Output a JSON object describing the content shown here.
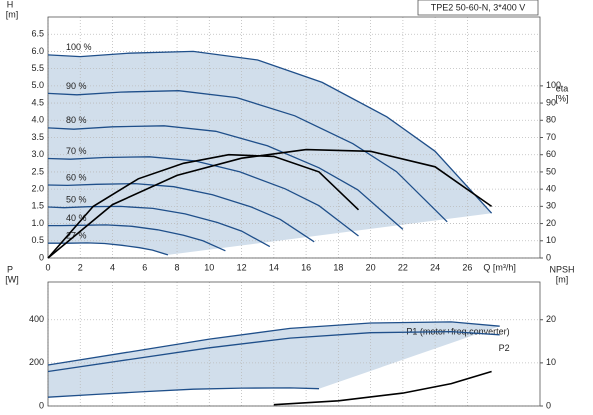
{
  "chart_data": [
    {
      "type": "line",
      "title": "TPE2 50-60-N, 3*400 V",
      "y_label": "H",
      "y_unit": "[m]",
      "y2_label": "eta",
      "y2_unit": "[%]",
      "x_label": "Q [m³/h]",
      "xlim": [
        0,
        30.5
      ],
      "xticks": [
        0,
        2,
        4,
        6,
        8,
        10,
        12,
        14,
        16,
        18,
        20,
        22,
        24,
        26
      ],
      "ylim": [
        0,
        7
      ],
      "yticks": [
        0,
        0.5,
        {
          "value": 1,
          "label": "1.0"
        },
        1.5,
        {
          "value": 2,
          "label": "2.0"
        },
        2.5,
        {
          "value": 3,
          "label": "3.0"
        },
        3.5,
        {
          "value": 4,
          "label": "4.0"
        },
        4.5,
        {
          "value": 5,
          "label": "5.0"
        },
        5.5,
        {
          "value": 6,
          "label": "6.0"
        },
        6.5
      ],
      "y2lim": [
        0,
        140
      ],
      "y2ticks": [
        0,
        10,
        20,
        30,
        40,
        50,
        60,
        70,
        80,
        90,
        100
      ],
      "grid": true,
      "shade_color": "#c9d8e8",
      "label_position": "start",
      "series": [
        {
          "name": "100 %",
          "color": "#1f4f8a",
          "x": [
            0,
            2,
            5,
            9,
            13,
            17,
            21,
            24,
            27.5
          ],
          "values": [
            5.9,
            5.85,
            5.95,
            6.0,
            5.75,
            5.1,
            4.1,
            3.1,
            1.3
          ]
        },
        {
          "name": "90 %",
          "color": "#1f4f8a",
          "x": [
            0,
            1.8,
            4.5,
            8.1,
            11.7,
            15.3,
            18.9,
            21.6,
            24.75
          ],
          "values": [
            4.78,
            4.74,
            4.82,
            4.86,
            4.66,
            4.13,
            3.32,
            2.51,
            1.05
          ]
        },
        {
          "name": "80 %",
          "color": "#1f4f8a",
          "x": [
            0,
            1.6,
            4,
            7.2,
            10.4,
            13.6,
            16.8,
            19.2,
            22
          ],
          "values": [
            3.78,
            3.74,
            3.81,
            3.84,
            3.68,
            3.26,
            2.62,
            1.98,
            0.83
          ]
        },
        {
          "name": "70 %",
          "color": "#1f4f8a",
          "x": [
            0,
            1.4,
            3.5,
            6.3,
            9.1,
            11.9,
            14.7,
            16.8,
            19.25
          ],
          "values": [
            2.89,
            2.87,
            2.92,
            2.94,
            2.82,
            2.5,
            2.01,
            1.52,
            0.64
          ]
        },
        {
          "name": "60 %",
          "color": "#1f4f8a",
          "x": [
            0,
            1.2,
            3,
            5.4,
            7.8,
            10.2,
            12.6,
            14.4,
            16.5
          ],
          "values": [
            2.12,
            2.11,
            2.14,
            2.16,
            2.07,
            1.84,
            1.48,
            1.12,
            0.47
          ]
        },
        {
          "name": "50 %",
          "color": "#1f4f8a",
          "x": [
            0,
            1,
            2.5,
            4.5,
            6.5,
            8.5,
            10.5,
            12,
            13.75
          ],
          "values": [
            1.48,
            1.46,
            1.49,
            1.5,
            1.44,
            1.28,
            1.03,
            0.78,
            0.33
          ]
        },
        {
          "name": "40 %",
          "color": "#1f4f8a",
          "x": [
            0,
            0.8,
            2,
            3.6,
            5.2,
            6.8,
            8.4,
            9.6,
            11
          ],
          "values": [
            0.94,
            0.94,
            0.95,
            0.96,
            0.92,
            0.82,
            0.66,
            0.5,
            0.21
          ]
        },
        {
          "name": "27 %",
          "color": "#1f4f8a",
          "x": [
            0,
            0.54,
            1.35,
            2.43,
            3.51,
            4.59,
            5.67,
            6.48,
            7.43
          ],
          "values": [
            0.43,
            0.43,
            0.43,
            0.44,
            0.42,
            0.37,
            0.3,
            0.23,
            0.09
          ]
        },
        {
          "color": "#000000",
          "axis": "y2",
          "x": [
            0,
            4,
            8,
            12,
            16,
            20,
            24,
            27.5
          ],
          "values": [
            0,
            31,
            48,
            58,
            63,
            62,
            53,
            30
          ]
        },
        {
          "color": "#000000",
          "axis": "y2",
          "x": [
            0,
            2.8,
            5.6,
            8.4,
            11.2,
            14,
            16.8,
            19.25
          ],
          "values": [
            0,
            30,
            46,
            55,
            60,
            59,
            50,
            28
          ]
        }
      ]
    },
    {
      "type": "line",
      "y_label": "P",
      "y_unit": "[W]",
      "y2_label": "NPSH",
      "y2_unit": "[m]",
      "xlim": [
        0,
        30.5
      ],
      "xticks": [
        0,
        2,
        4,
        6,
        8,
        10,
        12,
        14,
        16,
        18,
        20,
        22,
        24,
        26
      ],
      "ylim": [
        0,
        575
      ],
      "yticks": [
        0,
        200,
        400
      ],
      "y2lim": [
        0,
        28.75
      ],
      "y2ticks": [
        0,
        10,
        20
      ],
      "grid": true,
      "shade_color": "#c9d8e8",
      "label_position": "end",
      "series": [
        {
          "name": "P1 (motor+freq.converter)",
          "color": "#1f4f8a",
          "x": [
            0,
            5,
            10,
            15,
            20,
            25,
            28
          ],
          "values": [
            190,
            250,
            310,
            360,
            385,
            390,
            370
          ]
        },
        {
          "name": "P2",
          "color": "#1f4f8a",
          "x": [
            0,
            5,
            10,
            15,
            20,
            25,
            28
          ],
          "values": [
            160,
            215,
            270,
            315,
            340,
            345,
            330
          ]
        },
        {
          "color": "#1f4f8a",
          "x": [
            0,
            3,
            6,
            9,
            12,
            15,
            16.8
          ],
          "values": [
            41,
            54,
            67,
            78,
            83,
            84,
            80
          ]
        },
        {
          "color": "#000000",
          "axis": "y2",
          "x": [
            14,
            18,
            22,
            25,
            27.5
          ],
          "values": [
            0.3,
            1.2,
            3,
            5.2,
            8
          ]
        }
      ]
    }
  ]
}
